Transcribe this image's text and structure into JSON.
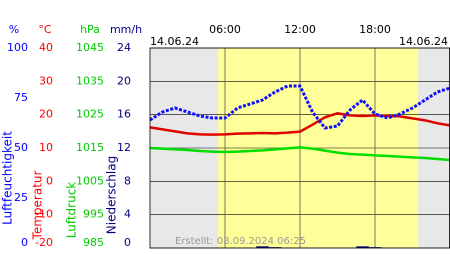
{
  "chart_data": {
    "type": "line",
    "date_labels": [
      "14.06.24",
      "14.06.24"
    ],
    "footnote": "Erstellt: 08.09.2024 06:25",
    "xlim": [
      0,
      24
    ],
    "xticks": [
      {
        "value": 6,
        "label": "06:00"
      },
      {
        "value": 12,
        "label": "12:00"
      },
      {
        "value": 18,
        "label": "18:00"
      }
    ],
    "daylight": [
      5.45,
      21.45
    ],
    "grid": true,
    "x": [
      0,
      1,
      2,
      3,
      4,
      5,
      6,
      7,
      8,
      9,
      10,
      11,
      12,
      13,
      14,
      15,
      16,
      17,
      18,
      19,
      20,
      21,
      22,
      23,
      24
    ],
    "axes": [
      {
        "unit": "%",
        "title": "Luftfeuchtigkeit",
        "color": "#0000ff",
        "ylim": [
          0,
          100
        ],
        "yticks": [
          0,
          25,
          50,
          75,
          100
        ]
      },
      {
        "unit": "°C",
        "title": "Temperatur",
        "color": "#ff0000",
        "ylim": [
          -20,
          40
        ],
        "yticks": [
          -20,
          -10,
          0,
          10,
          20,
          30,
          40
        ]
      },
      {
        "unit": "hPa",
        "title": "Luftdruck",
        "color": "#00cc00",
        "ylim": [
          985,
          1045
        ],
        "yticks": [
          985,
          995,
          1005,
          1015,
          1025,
          1035,
          1045
        ]
      },
      {
        "unit": "mm/h",
        "title": "Niederschlag",
        "color": "#000080",
        "ylim": [
          0,
          24
        ],
        "yticks": [
          0,
          4,
          8,
          12,
          16,
          20,
          24
        ]
      }
    ],
    "series": [
      {
        "axis": 3,
        "type": "bar",
        "color": "#000080",
        "values": [
          0,
          0,
          0,
          0,
          0,
          0,
          0,
          0,
          0,
          0.2,
          0.1,
          0,
          0,
          0,
          0,
          0,
          0,
          0.2,
          0.1,
          0,
          0,
          0,
          0,
          0,
          0
        ]
      },
      {
        "axis": 2,
        "type": "line",
        "color": "#00dd00",
        "values": [
          1015.0,
          1014.8,
          1014.6,
          1014.4,
          1014.1,
          1013.9,
          1013.8,
          1013.9,
          1014.1,
          1014.3,
          1014.6,
          1014.9,
          1015.2,
          1014.8,
          1014.2,
          1013.6,
          1013.2,
          1013.0,
          1012.8,
          1012.6,
          1012.4,
          1012.2,
          1012.0,
          1011.7,
          1011.4
        ]
      },
      {
        "axis": 1,
        "type": "line",
        "color": "#e00000",
        "values": [
          16.2,
          15.6,
          15.0,
          14.4,
          14.1,
          14.0,
          14.1,
          14.3,
          14.4,
          14.5,
          14.4,
          14.6,
          14.9,
          17.0,
          19.2,
          20.4,
          19.8,
          19.6,
          19.8,
          19.6,
          19.5,
          18.9,
          18.3,
          17.4,
          16.8
        ]
      },
      {
        "axis": 0,
        "type": "dotted",
        "color": "#1010ff",
        "values": [
          64,
          68,
          70,
          68,
          66,
          65,
          65,
          70,
          72,
          74,
          78,
          81,
          81,
          68,
          60,
          61,
          69,
          74,
          67,
          65,
          67,
          70,
          74,
          78,
          80
        ]
      }
    ]
  }
}
